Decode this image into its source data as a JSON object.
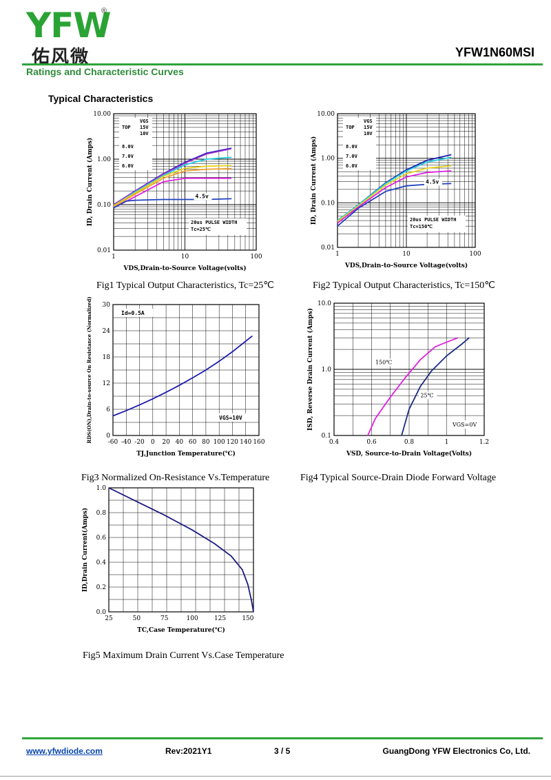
{
  "header": {
    "logo_text": "YFW",
    "logo_cn": "佑风微",
    "logo_registered": "®",
    "part_number": "YFW1N60MSI",
    "section_title": "Ratings and Characteristic Curves"
  },
  "page": {
    "subheading": "Typical Characteristics"
  },
  "colors": {
    "brand_green": "#2ea43a",
    "link_blue": "#0645ad"
  },
  "footer": {
    "website": "www.yfwdiode.com",
    "revision": "Rev:2021Y1",
    "page_number": "3 / 5",
    "company": "GuangDong YFW Electronics Co, Ltd."
  },
  "chart_data": [
    {
      "id": "fig1",
      "type": "line",
      "caption": "Fig1 Typical Output Characteristics, Tc=25℃",
      "xlabel": "VDS,Drain-to-Source Voltage(volts)",
      "ylabel": "ID, Drain Current (Amps)",
      "x_scale": "log",
      "y_scale": "log",
      "xlim": [
        1,
        100
      ],
      "ylim": [
        0.01,
        10
      ],
      "x_ticks": [
        "1",
        "10",
        "100"
      ],
      "y_ticks": [
        "0.01",
        "0.10",
        "1.00",
        "10.00"
      ],
      "grid": true,
      "legend_title": "VGS",
      "legend_entries": [
        "TOP",
        "15V",
        "10V",
        "8.0V",
        "7.0V",
        "6.0V"
      ],
      "annotations": [
        "4.5v",
        "20us PULSE WIDTH",
        "Tc=25℃"
      ],
      "series": [
        {
          "color": "#1a1ab0",
          "x": [
            1,
            2,
            5,
            10,
            20,
            45
          ],
          "y": [
            0.1,
            0.2,
            0.48,
            0.85,
            1.35,
            1.75
          ]
        },
        {
          "color": "#9a2bd6",
          "x": [
            1,
            2,
            5,
            10,
            20,
            45
          ],
          "y": [
            0.1,
            0.2,
            0.47,
            0.82,
            1.3,
            1.7
          ]
        },
        {
          "color": "#20d0e0",
          "x": [
            1,
            2,
            5,
            10,
            20,
            45
          ],
          "y": [
            0.095,
            0.19,
            0.44,
            0.75,
            1.0,
            1.1
          ]
        },
        {
          "color": "#e8d21a",
          "x": [
            1,
            2,
            5,
            10,
            20,
            45
          ],
          "y": [
            0.095,
            0.18,
            0.42,
            0.63,
            0.7,
            0.72
          ]
        },
        {
          "color": "#f0a030",
          "x": [
            1,
            2,
            5,
            10,
            20,
            45
          ],
          "y": [
            0.09,
            0.17,
            0.38,
            0.55,
            0.6,
            0.62
          ]
        },
        {
          "color": "#e020e0",
          "x": [
            1,
            2,
            5,
            10,
            20,
            45
          ],
          "y": [
            0.085,
            0.15,
            0.32,
            0.38,
            0.38,
            0.38
          ]
        },
        {
          "color": "#2040c0",
          "x": [
            1,
            1.5,
            2,
            5,
            10,
            20,
            45
          ],
          "y": [
            0.085,
            0.12,
            0.125,
            0.13,
            0.13,
            0.13,
            0.135
          ]
        }
      ]
    },
    {
      "id": "fig2",
      "type": "line",
      "caption": "Fig2 Typical Output Characteristics, Tc=150℃",
      "xlabel": "VDS,Drain-to-Source Voltage(volts)",
      "ylabel": "ID, Drain Current (Amps)",
      "x_scale": "log",
      "y_scale": "log",
      "xlim": [
        1,
        100
      ],
      "ylim": [
        0.01,
        10
      ],
      "x_ticks": [
        "1",
        "10",
        "100"
      ],
      "y_ticks": [
        "0.01",
        "0.10",
        "1.00",
        "10.00"
      ],
      "grid": true,
      "legend_title": "VGS",
      "legend_entries": [
        "TOP",
        "15V",
        "10V",
        "8.0V",
        "7.0V",
        "6.0V"
      ],
      "annotations": [
        "4.5v",
        "20us PULSE WIDTH",
        "Tc=150℃"
      ],
      "series": [
        {
          "color": "#1a1ab0",
          "x": [
            1,
            2,
            5,
            10,
            20,
            45
          ],
          "y": [
            0.04,
            0.09,
            0.28,
            0.55,
            0.9,
            1.2
          ]
        },
        {
          "color": "#20d0e0",
          "x": [
            1,
            2,
            5,
            10,
            20,
            45
          ],
          "y": [
            0.04,
            0.09,
            0.27,
            0.52,
            0.82,
            1.05
          ]
        },
        {
          "color": "#e8d21a",
          "x": [
            1,
            2,
            5,
            10,
            20,
            45
          ],
          "y": [
            0.038,
            0.085,
            0.25,
            0.45,
            0.6,
            0.68
          ]
        },
        {
          "color": "#e020e0",
          "x": [
            1,
            2,
            5,
            10,
            20,
            45
          ],
          "y": [
            0.035,
            0.08,
            0.22,
            0.38,
            0.48,
            0.52
          ]
        },
        {
          "color": "#2040c0",
          "x": [
            1,
            2,
            5,
            10,
            20,
            45
          ],
          "y": [
            0.03,
            0.075,
            0.18,
            0.24,
            0.26,
            0.27
          ]
        }
      ]
    },
    {
      "id": "fig3",
      "type": "line",
      "caption": "Fig3 Normalized On-Resistance Vs.Temperature",
      "xlabel": "TJ,Junction Temperature(℃)",
      "ylabel": "RDS(ON),Drain-to-source On Resistance (Normalized)",
      "xlim": [
        -60,
        160
      ],
      "ylim": [
        0,
        30
      ],
      "x_ticks": [
        "-60",
        "-40",
        "-20",
        "0",
        "20",
        "40",
        "60",
        "80",
        "100",
        "120",
        "140",
        "160"
      ],
      "y_ticks": [
        "0",
        "6",
        "12",
        "18",
        "24",
        "30"
      ],
      "grid": true,
      "annotations": [
        "Id=0.5A",
        "VGS=10V"
      ],
      "series": [
        {
          "color": "#1a1ab0",
          "x": [
            -60,
            -40,
            -20,
            0,
            20,
            40,
            60,
            80,
            100,
            120,
            140,
            150
          ],
          "y": [
            4.5,
            5.7,
            7.0,
            8.4,
            9.9,
            11.5,
            13.2,
            15.0,
            17.0,
            19.2,
            21.6,
            22.8
          ]
        }
      ]
    },
    {
      "id": "fig4",
      "type": "line",
      "caption": "Fig4 Typical Source-Drain Diode Forward Voltage",
      "xlabel": "VSD, Source-to-Drain Voltage(Volts)",
      "ylabel": "ISD, Reverse Drain Current (Amps)",
      "y_scale": "log",
      "xlim": [
        0.4,
        1.2
      ],
      "ylim": [
        0.1,
        10
      ],
      "x_ticks": [
        "0.4",
        "0.6",
        "0.8",
        "1",
        "1.2"
      ],
      "y_ticks": [
        "0.1",
        "1.0",
        "10.0"
      ],
      "grid": true,
      "annotations": [
        "150℃",
        "25℃",
        "VGS=0V"
      ],
      "series": [
        {
          "name": "150℃",
          "color": "#e020e0",
          "x": [
            0.58,
            0.62,
            0.7,
            0.78,
            0.86,
            0.94,
            1.06
          ],
          "y": [
            0.1,
            0.18,
            0.38,
            0.75,
            1.4,
            2.2,
            3.0
          ]
        },
        {
          "name": "25℃",
          "color": "#1a2a80",
          "x": [
            0.76,
            0.8,
            0.86,
            0.92,
            1.0,
            1.08,
            1.12
          ],
          "y": [
            0.1,
            0.25,
            0.55,
            0.95,
            1.6,
            2.4,
            3.0
          ]
        }
      ]
    },
    {
      "id": "fig5",
      "type": "line",
      "caption": "Fig5 Maximum Drain Current Vs.Case Temperature",
      "xlabel": "TC,Case Temperature(℃)",
      "ylabel": "ID,Drain Current(Amps)",
      "xlim": [
        25,
        155
      ],
      "ylim": [
        0,
        1.0
      ],
      "x_ticks": [
        "25",
        "50",
        "75",
        "100",
        "125",
        "150"
      ],
      "y_ticks": [
        "0.0",
        "0.2",
        "0.4",
        "0.6",
        "0.8",
        "1.0"
      ],
      "grid": true,
      "series": [
        {
          "color": "#1a1a80",
          "x": [
            25,
            50,
            75,
            100,
            120,
            135,
            145,
            150,
            153,
            155
          ],
          "y": [
            1.0,
            0.89,
            0.78,
            0.66,
            0.55,
            0.45,
            0.34,
            0.22,
            0.1,
            0.0
          ]
        }
      ]
    }
  ]
}
